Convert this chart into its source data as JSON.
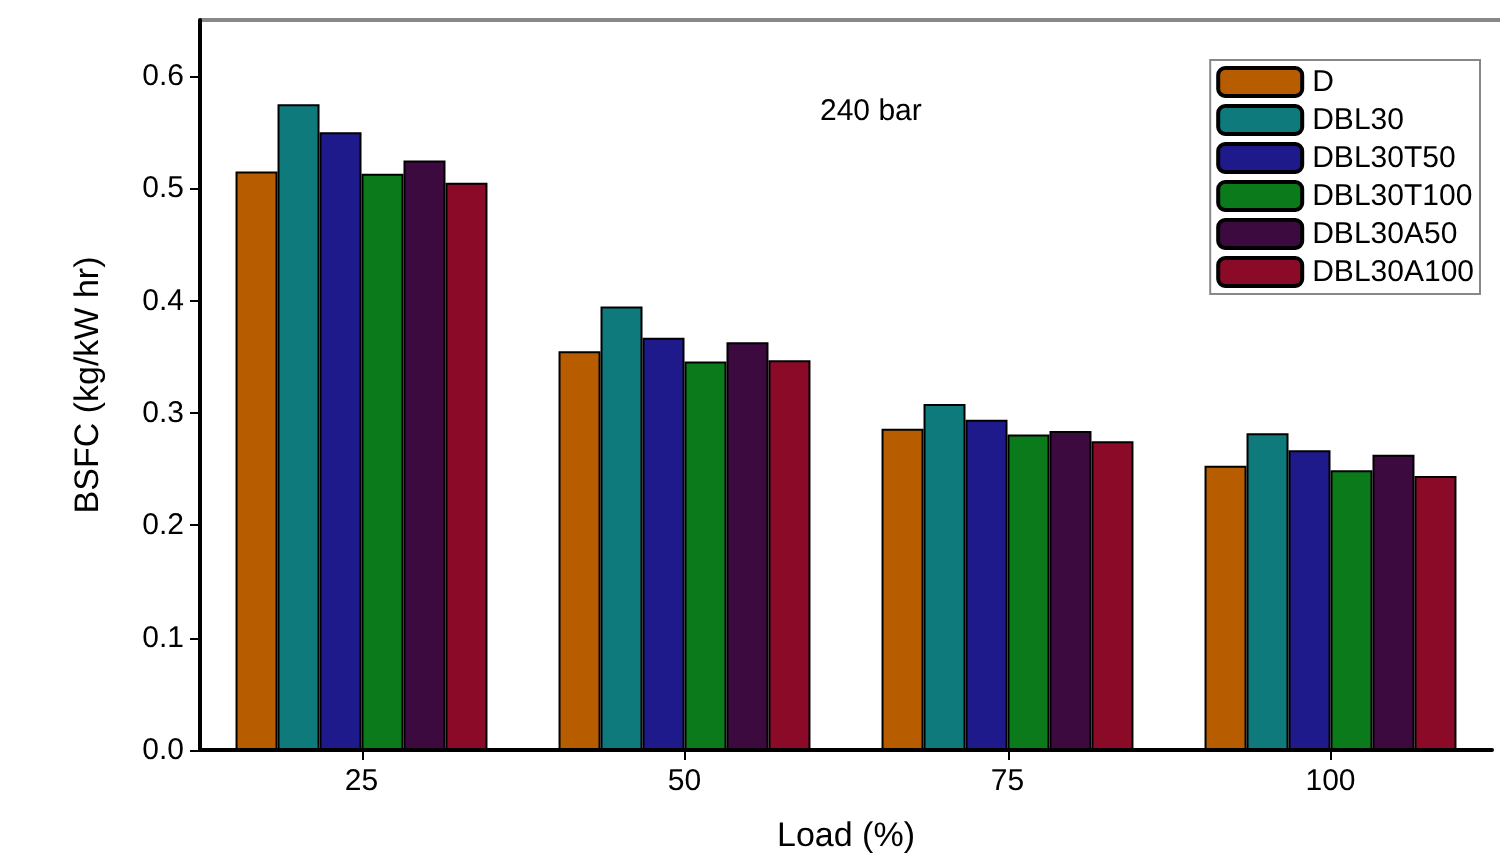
{
  "chart_data": {
    "type": "bar",
    "xlabel": "Load (%)",
    "ylabel": "BSFC (kg/kW hr)",
    "categories": [
      "25",
      "50",
      "75",
      "100"
    ],
    "series": [
      {
        "name": "D",
        "color": "#b85c00",
        "values": [
          0.515,
          0.355,
          0.286,
          0.253
        ]
      },
      {
        "name": "DBL30",
        "color": "#0e7a7c",
        "values": [
          0.575,
          0.395,
          0.308,
          0.282
        ]
      },
      {
        "name": "DBL30T50",
        "color": "#1f1a8c",
        "values": [
          0.55,
          0.367,
          0.294,
          0.267
        ]
      },
      {
        "name": "DBL30T100",
        "color": "#0a7a1a",
        "values": [
          0.513,
          0.346,
          0.281,
          0.249
        ]
      },
      {
        "name": "DBL30A50",
        "color": "#3d0a40",
        "values": [
          0.525,
          0.363,
          0.284,
          0.263
        ]
      },
      {
        "name": "DBL30A100",
        "color": "#8a0a28",
        "values": [
          0.505,
          0.347,
          0.275,
          0.244
        ]
      }
    ],
    "ylim": [
      0,
      0.65
    ],
    "yticks": [
      {
        "value": 0,
        "label": "0.0"
      },
      0.1,
      0.2,
      0.3,
      0.4,
      0.5,
      0.6
    ],
    "annotations": [
      "240 bar"
    ],
    "legend": "top right",
    "grid": false
  }
}
